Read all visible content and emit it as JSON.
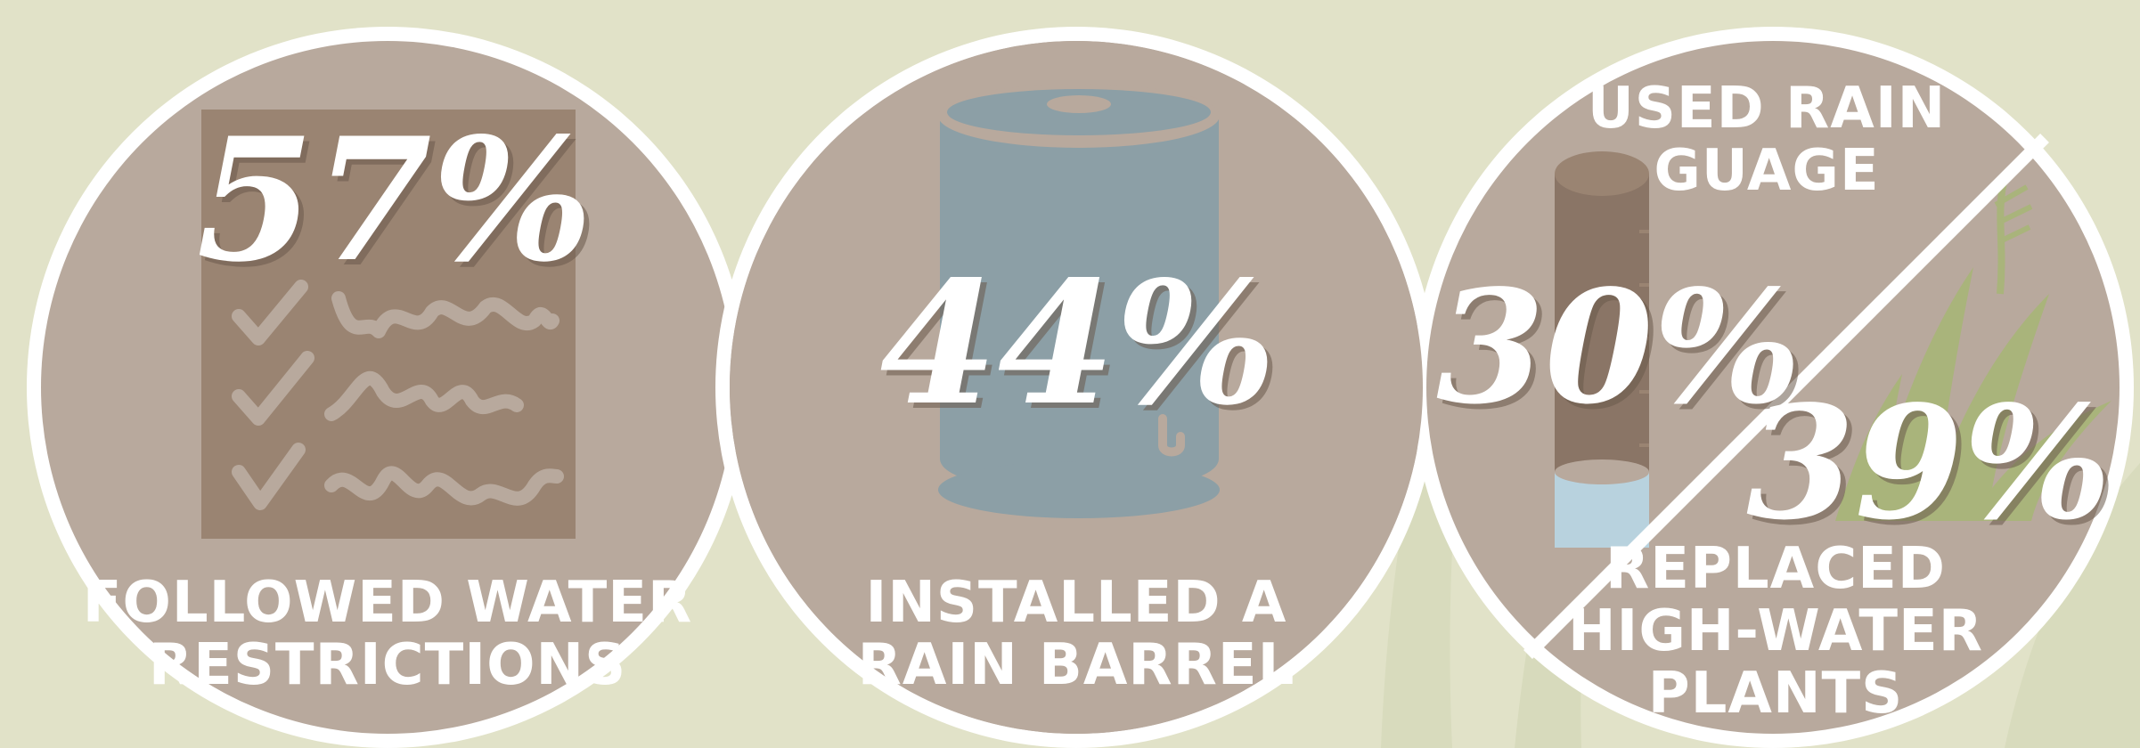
{
  "stats": [
    {
      "percent": "57%",
      "caption": [
        "FOLLOWED WATER",
        "RESTRICTIONS"
      ],
      "icon": "checklist-icon"
    },
    {
      "percent": "44%",
      "caption": [
        "INSTALLED A",
        "RAIN BARREL"
      ],
      "icon": "rain-barrel-icon"
    },
    {
      "upper": {
        "percent": "30%",
        "caption": [
          "USED RAIN",
          "GUAGE"
        ],
        "icon": "rain-gauge-icon"
      },
      "lower": {
        "percent": "39%",
        "caption": [
          "REPLACED",
          "HIGH-WATER",
          "PLANTS"
        ],
        "icon": "succulent-plant-icon"
      }
    }
  ],
  "colors": {
    "background": "#e1e2c8",
    "circle_fill": "#b8a99d",
    "ring": "#ffffff",
    "panel": "#9a8472",
    "barrel": "#8c9fa6",
    "gauge": "#8a7566",
    "gauge_water": "#b8d2de",
    "plant": "#a9b47b"
  }
}
